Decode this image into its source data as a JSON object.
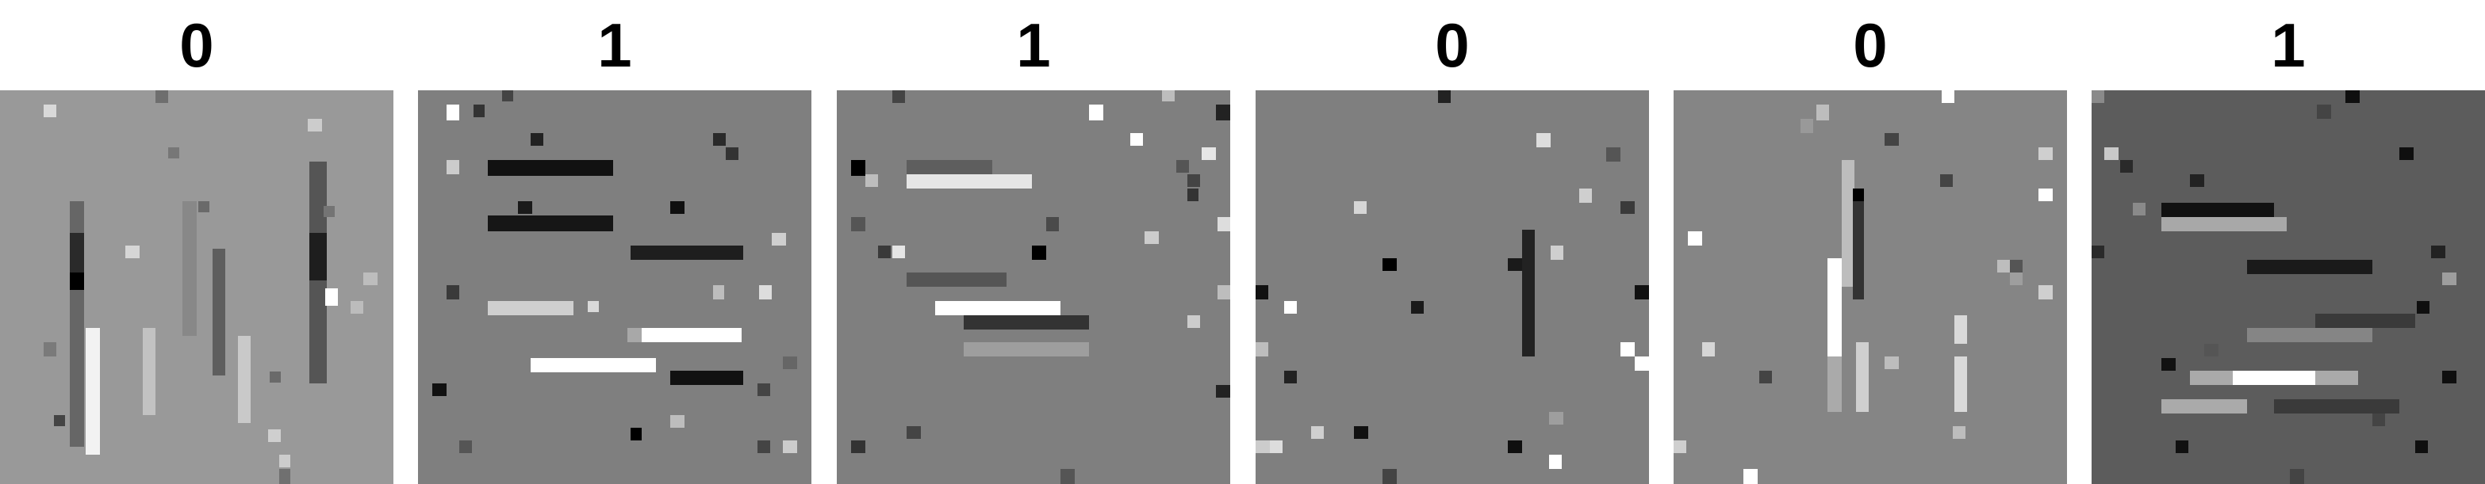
{
  "panels": [
    {
      "label": "0",
      "background": "#999999"
    },
    {
      "label": "1",
      "background": "#7f7f7f"
    },
    {
      "label": "1",
      "background": "#7f7f7f"
    },
    {
      "label": "0",
      "background": "#7f7f7f"
    },
    {
      "label": "0",
      "background": "#858585"
    },
    {
      "label": "1",
      "background": "#5c5c5c"
    }
  ]
}
